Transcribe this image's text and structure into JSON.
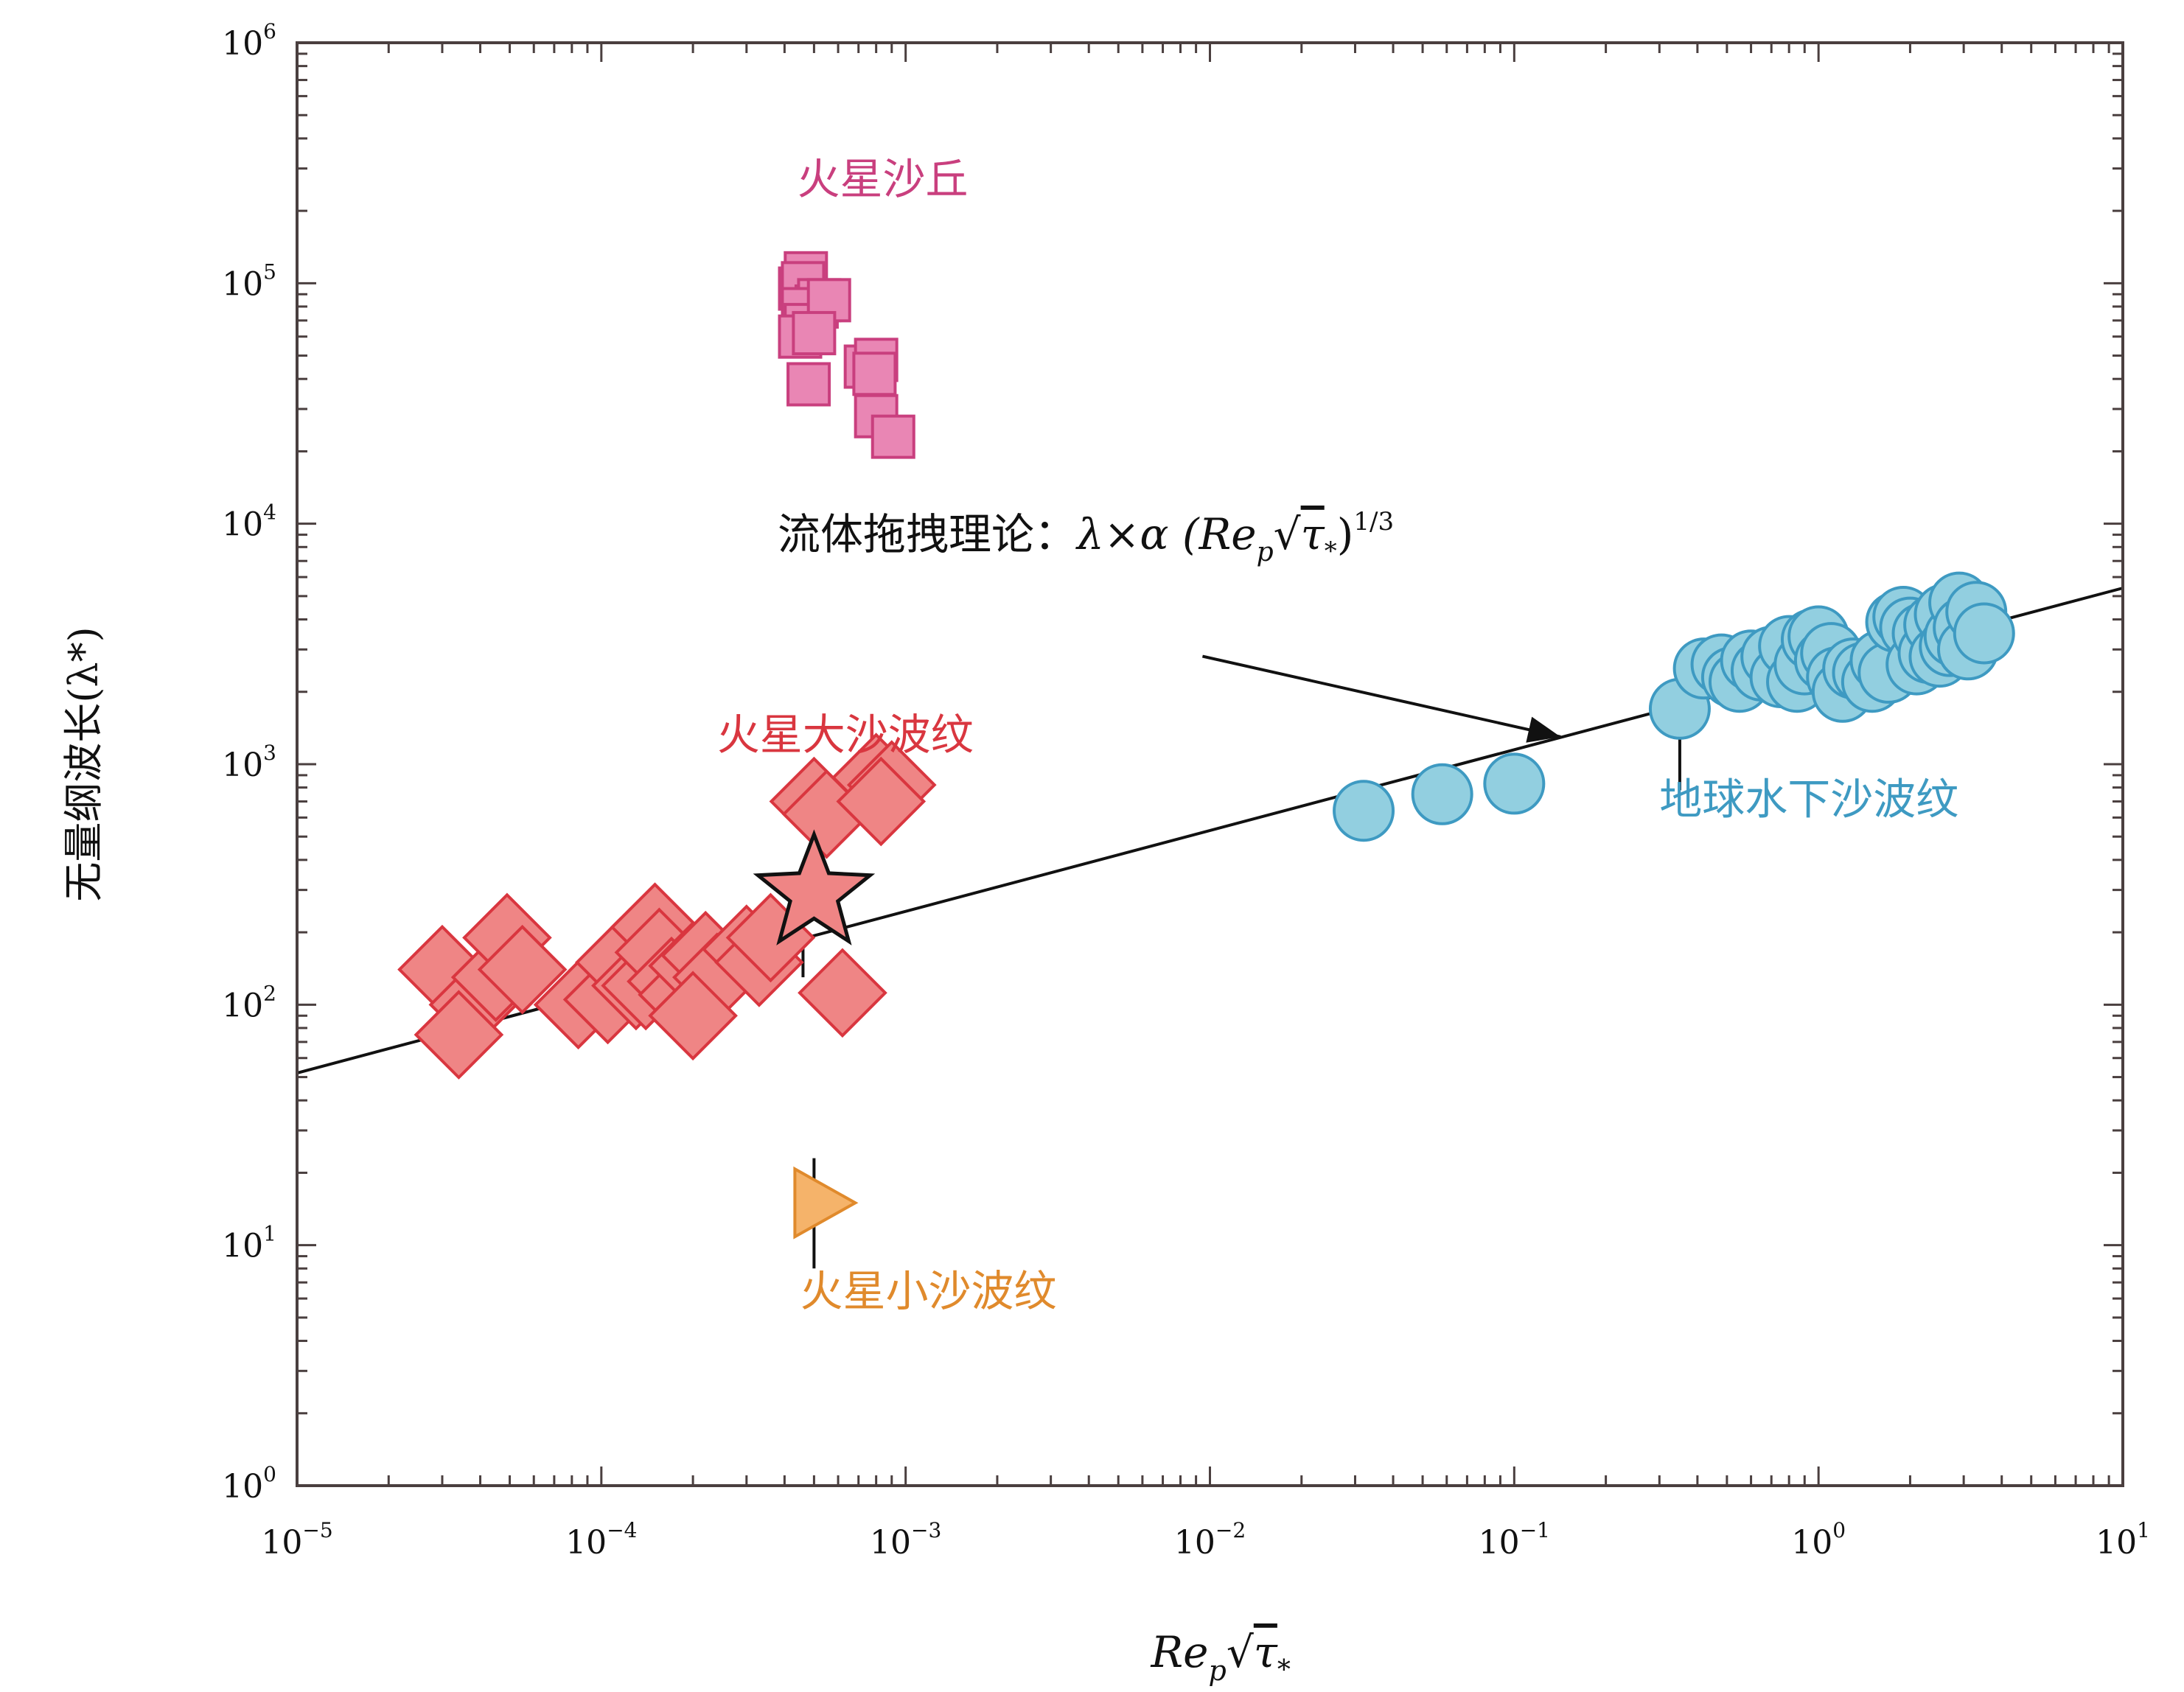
{
  "chart_data": {
    "type": "scatter",
    "x_scale": "log",
    "y_scale": "log",
    "xlim": [
      1e-05,
      10
    ],
    "ylim": [
      1,
      1000000
    ],
    "xticks": [
      {
        "base": "10",
        "exp": "−5",
        "value": 1e-05
      },
      {
        "base": "10",
        "exp": "−4",
        "value": 0.0001
      },
      {
        "base": "10",
        "exp": "−3",
        "value": 0.001
      },
      {
        "base": "10",
        "exp": "−2",
        "value": 0.01
      },
      {
        "base": "10",
        "exp": "−1",
        "value": 0.1
      },
      {
        "base": "10",
        "exp": "0",
        "value": 1
      },
      {
        "base": "10",
        "exp": "1",
        "value": 10
      }
    ],
    "yticks": [
      {
        "base": "10",
        "exp": "0",
        "value": 1
      },
      {
        "base": "10",
        "exp": "1",
        "value": 10
      },
      {
        "base": "10",
        "exp": "2",
        "value": 100
      },
      {
        "base": "10",
        "exp": "3",
        "value": 1000
      },
      {
        "base": "10",
        "exp": "4",
        "value": 10000
      },
      {
        "base": "10",
        "exp": "5",
        "value": 100000
      },
      {
        "base": "10",
        "exp": "6",
        "value": 1000000
      }
    ],
    "ylabel": "无量纲波长(λ*)",
    "xlabel": {
      "main": "Re",
      "sub": "p",
      "root": "√",
      "tau": "τ",
      "tau_sub": "*"
    },
    "theory": {
      "label": "流体拖拽理论：",
      "formula": {
        "lambda": "λ×α (Re",
        "sub": "p",
        "root": "√",
        "tau": "τ",
        "tau_sub": "*",
        "close": ")",
        "sup": "1/3"
      },
      "line": {
        "x": [
          1e-05,
          10
        ],
        "y": [
          52,
          5400
        ]
      },
      "arrow_from": [
        0.11,
        4000
      ],
      "arrow_to": [
        0.142,
        1300
      ],
      "color": "#111111"
    },
    "series": [
      {
        "name": "火星沙丘",
        "marker": "square",
        "fill": "#e986b4",
        "stroke": "#c93f7e",
        "label_pos": [
          0.00044,
          235000
        ],
        "points": [
          [
            0.00045,
            95000
          ],
          [
            0.00047,
            110000
          ],
          [
            0.00046,
            100000
          ],
          [
            0.00051,
            80000
          ],
          [
            0.00052,
            85000
          ],
          [
            0.00046,
            78000
          ],
          [
            0.00047,
            67000
          ],
          [
            0.00045,
            60000
          ],
          [
            0.00056,
            85000
          ],
          [
            0.0005,
            62000
          ],
          [
            0.00048,
            38000
          ],
          [
            0.00074,
            45000
          ],
          [
            0.0008,
            48000
          ],
          [
            0.00079,
            42000
          ],
          [
            0.0008,
            28000
          ],
          [
            0.00091,
            23000
          ]
        ]
      },
      {
        "name": "火星大沙波纹",
        "marker": "diamond",
        "fill": "#ef8585",
        "stroke": "#d9363f",
        "label_pos": [
          0.00024,
          1150
        ],
        "points": [
          [
            3e-05,
            140
          ],
          [
            3.8e-05,
            100
          ],
          [
            3.4e-05,
            75
          ],
          [
            4.5e-05,
            130
          ],
          [
            4.9e-05,
            190
          ],
          [
            5.5e-05,
            140
          ],
          [
            8.4e-05,
            100
          ],
          [
            0.000105,
            105
          ],
          [
            0.000115,
            150
          ],
          [
            0.00013,
            120
          ],
          [
            0.00015,
            210
          ],
          [
            0.00014,
            120
          ],
          [
            0.000155,
            165
          ],
          [
            0.00017,
            125
          ],
          [
            0.000185,
            110
          ],
          [
            0.0002,
            145
          ],
          [
            0.00022,
            160
          ],
          [
            0.00024,
            130
          ],
          [
            0.0002,
            90
          ],
          [
            0.0003,
            170
          ],
          [
            0.00033,
            150
          ],
          [
            0.00036,
            190
          ],
          [
            0.0005,
            700
          ],
          [
            0.00055,
            620
          ],
          [
            0.0008,
            880
          ],
          [
            0.0009,
            820
          ],
          [
            0.00083,
            700
          ],
          [
            0.00062,
            112
          ]
        ]
      },
      {
        "name": "地球水下沙波纹",
        "marker": "circle",
        "fill": "#92cfe0",
        "stroke": "#3e9ac2",
        "label_pos": [
          0.3,
          620
        ],
        "points": [
          [
            0.032,
            640
          ],
          [
            0.058,
            750
          ],
          [
            0.1,
            830
          ],
          [
            0.35,
            1700
          ],
          [
            0.42,
            2500
          ],
          [
            0.48,
            2600
          ],
          [
            0.52,
            2300
          ],
          [
            0.55,
            2200
          ],
          [
            0.6,
            2700
          ],
          [
            0.65,
            2450
          ],
          [
            0.7,
            2800
          ],
          [
            0.75,
            2300
          ],
          [
            0.8,
            3100
          ],
          [
            0.85,
            2200
          ],
          [
            0.9,
            2600
          ],
          [
            0.95,
            3300
          ],
          [
            1.0,
            3400
          ],
          [
            1.05,
            2700
          ],
          [
            1.1,
            2900
          ],
          [
            1.15,
            2300
          ],
          [
            1.2,
            2000
          ],
          [
            1.3,
            2500
          ],
          [
            1.4,
            2400
          ],
          [
            1.5,
            2200
          ],
          [
            1.6,
            2700
          ],
          [
            1.7,
            2400
          ],
          [
            1.8,
            3900
          ],
          [
            1.9,
            4100
          ],
          [
            2.0,
            3700
          ],
          [
            2.1,
            2600
          ],
          [
            2.2,
            3500
          ],
          [
            2.3,
            2900
          ],
          [
            2.4,
            3800
          ],
          [
            2.5,
            2800
          ],
          [
            2.6,
            4200
          ],
          [
            2.7,
            3100
          ],
          [
            2.8,
            3400
          ],
          [
            2.9,
            4700
          ],
          [
            3.0,
            3700
          ],
          [
            3.1,
            3000
          ],
          [
            3.3,
            4300
          ],
          [
            3.5,
            3500
          ]
        ]
      },
      {
        "name": "火星小沙波纹",
        "marker": "triangle-right",
        "fill": "#f5b36a",
        "stroke": "#e08a2c",
        "label_pos": [
          0.00045,
          5.6
        ],
        "points": [
          [
            0.0005,
            15
          ]
        ]
      }
    ],
    "star": {
      "x": 0.0005,
      "y": 290,
      "fill": "#ef8585",
      "stroke": "#111111"
    },
    "error_bars": [
      {
        "x": 0.0005,
        "y1": 8,
        "y2": 23
      },
      {
        "x": 0.00033,
        "y1": 100,
        "y2": 180
      },
      {
        "x": 0.00046,
        "y1": 130,
        "y2": 230
      },
      {
        "x": 0.35,
        "y1": 780,
        "y2": 2600
      }
    ]
  }
}
